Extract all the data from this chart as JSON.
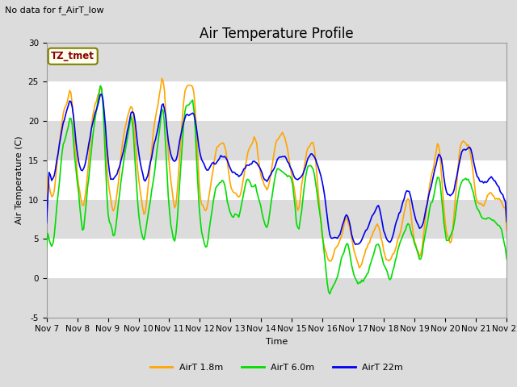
{
  "title": "Air Temperature Profile",
  "subtitle": "No data for f_AirT_low",
  "xlabel": "Time",
  "ylabel": "Air Temperature (C)",
  "ylim": [
    -5,
    30
  ],
  "yticks": [
    -5,
    0,
    5,
    10,
    15,
    20,
    25,
    30
  ],
  "xtick_labels": [
    "Nov 7",
    "Nov 8",
    "Nov 9",
    "Nov 10",
    "Nov 11",
    "Nov 12",
    "Nov 13",
    "Nov 14",
    "Nov 15",
    "Nov 16",
    "Nov 17",
    "Nov 18",
    "Nov 19",
    "Nov 20",
    "Nov 21",
    "Nov 22"
  ],
  "legend_labels": [
    "AirT 1.8m",
    "AirT 6.0m",
    "AirT 22m"
  ],
  "line_colors": [
    "#FFA500",
    "#00DD00",
    "#0000EE"
  ],
  "bg_color": "#DCDCDC",
  "plot_bg_color": "#FFFFFF",
  "band_color": "#DCDCDC",
  "annotation_text": "TZ_tmet",
  "annotation_color": "#8B0000",
  "annotation_bg": "#FFFFF0",
  "annotation_border": "#808000",
  "grid_color": "#DCDCDC",
  "line_width": 1.2,
  "title_fontsize": 12,
  "label_fontsize": 8,
  "tick_fontsize": 7.5
}
